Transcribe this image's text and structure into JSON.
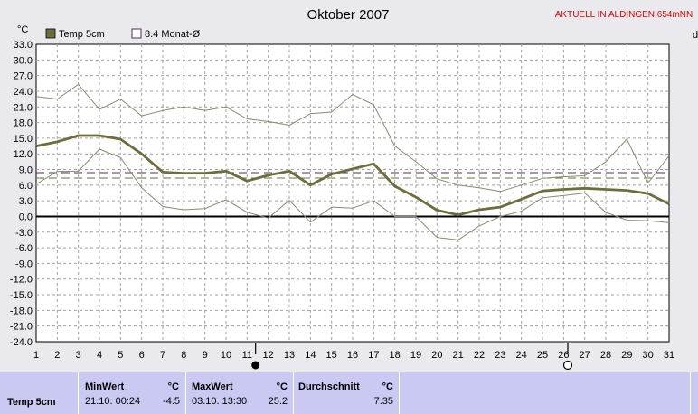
{
  "chart_data": {
    "type": "line",
    "title": "Oktober 2007",
    "ylabel": "°C",
    "ylim": [
      -24,
      33
    ],
    "yticks": [
      "33.0",
      "30.0",
      "27.0",
      "24.0",
      "21.0",
      "18.0",
      "15.0",
      "12.0",
      "9.0",
      "6.0",
      "3.0",
      "0.0",
      "-3.0",
      "-6.0",
      "-9.0",
      "-12.0",
      "-15.0",
      "-18.0",
      "-21.0",
      "-24.0"
    ],
    "x": [
      "1",
      "2",
      "3",
      "4",
      "5",
      "6",
      "7",
      "8",
      "9",
      "10",
      "11",
      "12",
      "13",
      "14",
      "15",
      "16",
      "17",
      "18",
      "19",
      "20",
      "21",
      "22",
      "23",
      "24",
      "25",
      "26",
      "27",
      "28",
      "29",
      "30",
      "31"
    ],
    "grid": true,
    "series": [
      {
        "name": "Temp 5cm",
        "role": "mean",
        "color": "#6e6e3c",
        "values": [
          13.5,
          14.3,
          15.5,
          15.5,
          14.8,
          12,
          8.5,
          8.3,
          8.3,
          8.7,
          6.8,
          7.9,
          8.7,
          6,
          8.1,
          9.1,
          10.1,
          5.8,
          3.7,
          1.2,
          0.3,
          1.3,
          1.8,
          3.3,
          4.9,
          5.2,
          5.4,
          5.2,
          5,
          4.4,
          2.4
        ]
      },
      {
        "role": "max",
        "color": "#8a8a70",
        "values": [
          23,
          22.5,
          25.3,
          20.5,
          22.5,
          19.3,
          20.3,
          21,
          20.3,
          21,
          18.7,
          18.2,
          17.5,
          19.7,
          20,
          23.4,
          21.4,
          13.5,
          10.5,
          7.2,
          6,
          5.5,
          4.8,
          6,
          7.3,
          7.6,
          7.8,
          10.5,
          14.8,
          6.4,
          11.6
        ]
      },
      {
        "role": "min",
        "color": "#8a8a70",
        "values": [
          6.2,
          8.6,
          8.7,
          12.9,
          11.3,
          5.5,
          1.9,
          1.3,
          1.5,
          3.2,
          0.8,
          -0.3,
          3.1,
          -1.1,
          1.8,
          1.6,
          3,
          0,
          0,
          -4,
          -4.5,
          -1.8,
          0,
          1,
          3.6,
          4,
          4.5,
          0.8,
          -0.7,
          -0.8,
          -1.2
        ]
      }
    ],
    "reference_lines": [
      {
        "name": "8.4 Monat-Ø",
        "value": 8.4,
        "color": "#5a2a5a"
      },
      {
        "value": 7.35,
        "color": "#6e6e3c"
      }
    ],
    "moon_markers": [
      {
        "day": 11.4,
        "phase": "new-moon-icon"
      },
      {
        "day": 26.2,
        "phase": "full-moon-icon"
      }
    ]
  },
  "header": {
    "title": "Oktober 2007",
    "alert": "AKTUELL IN ALDINGEN 654mNN",
    "y_unit": "°C",
    "right_edge_label": "d"
  },
  "legend": [
    {
      "label": "Temp 5cm",
      "swatch": "#6e6e3c",
      "icon": "filled-square-icon"
    },
    {
      "label": "8.4 Monat-Ø",
      "swatch": "#5a2a5a",
      "icon": "outlined-square-icon"
    }
  ],
  "stats": {
    "row_label": "Temp 5cm",
    "min": {
      "header": "MinWert",
      "unit": "°C",
      "time": "21.10.  00:24",
      "value": "-4.5"
    },
    "max": {
      "header": "MaxWert",
      "unit": "°C",
      "time": "03.10.  13:30",
      "value": "25.2"
    },
    "avg": {
      "header": "Durchschnitt",
      "unit": "°C",
      "value": "7.35"
    }
  }
}
